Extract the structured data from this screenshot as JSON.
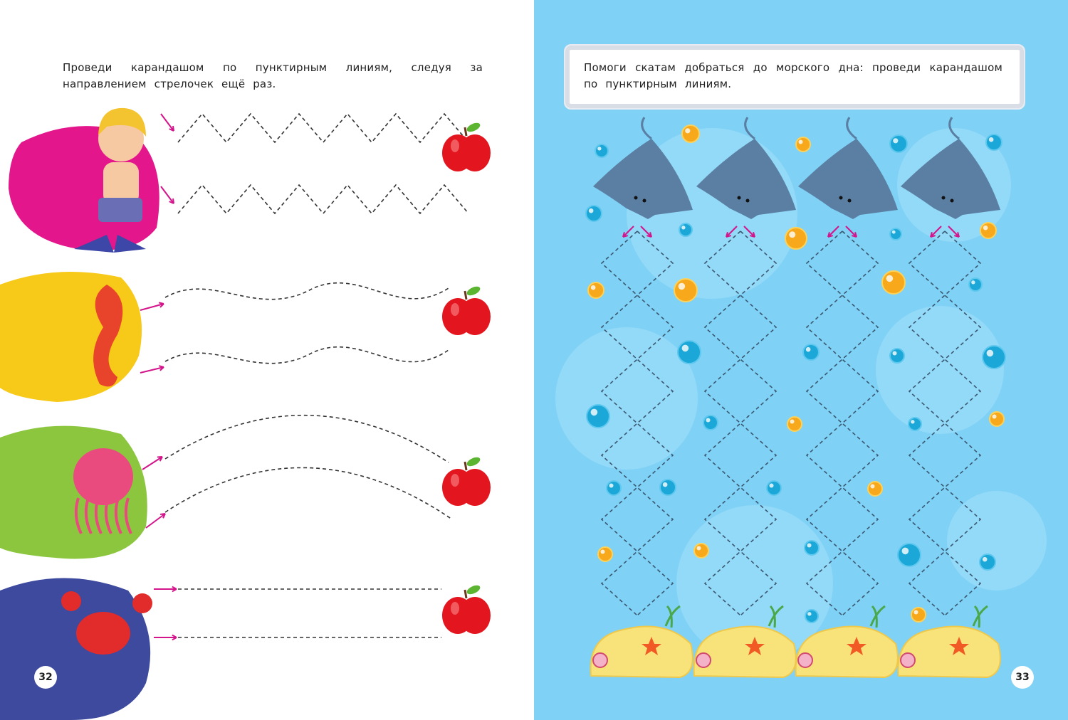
{
  "left_page": {
    "instruction": "Проведи карандашом по пунктирным линиям, следуя за направлением стрелочек ещё раз.",
    "page_number": "32",
    "rows": [
      {
        "character": "boy-in-flippers",
        "path_type": "zigzag",
        "blob_color": "#e3168c"
      },
      {
        "character": "seahorse",
        "path_type": "wave",
        "blob_color": "#f7c918"
      },
      {
        "character": "jellyfish",
        "path_type": "arc",
        "blob_color": "#8cc63f"
      },
      {
        "character": "crab",
        "path_type": "straight",
        "blob_color": "#3d4a9e"
      }
    ],
    "target_icon": "apple-icon"
  },
  "right_page": {
    "instruction": "Помоги скатам добраться до морского дна: проведи карандашом по пунктирным линиям.",
    "page_number": "33",
    "background_color": "#7fd1f6",
    "columns": 4,
    "start_icon": "stingray-icon",
    "end_icon": "sand-mound-icon"
  },
  "colors": {
    "arrow": "#d4148a",
    "apple": "#e3161f",
    "ray": "#5a7fa3",
    "sand": "#f8e27a"
  }
}
